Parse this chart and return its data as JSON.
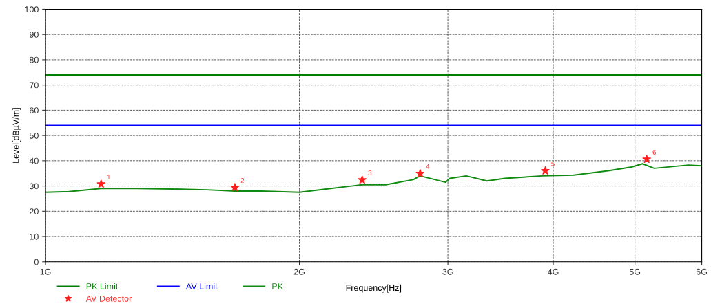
{
  "chart_data": {
    "type": "line",
    "xlabel": "Frequency[Hz]",
    "ylabel": "Level[dBµV/m]",
    "log": "x",
    "xlim": [
      1,
      6
    ],
    "ylim": [
      0,
      100
    ],
    "xticks": [
      {
        "value": 1,
        "label": "1G"
      },
      {
        "value": 2,
        "label": "2G"
      },
      {
        "value": 3,
        "label": "3G"
      },
      {
        "value": 4,
        "label": "4G"
      },
      {
        "value": 5,
        "label": "5G"
      },
      {
        "value": 6,
        "label": "6G"
      }
    ],
    "yticks": [
      0,
      10,
      20,
      30,
      40,
      50,
      60,
      70,
      80,
      90,
      100
    ],
    "grid": true,
    "legend": "bottom",
    "ref_lines": [
      {
        "axis": "y",
        "value": 74,
        "label": "PK Limit",
        "color": "#008000"
      },
      {
        "axis": "y",
        "value": 54,
        "label": "AV Limit",
        "color": "#0000ff"
      }
    ],
    "series": [
      {
        "name": "PK",
        "color": "#108a10",
        "x": [
          1.0,
          1.066,
          1.164,
          1.286,
          1.413,
          1.553,
          1.677,
          1.804,
          2.0,
          2.178,
          2.374,
          2.531,
          2.729,
          2.781,
          2.981,
          3.016,
          3.155,
          3.337,
          3.504,
          3.688,
          3.879,
          4.229,
          4.646,
          4.953,
          5.104,
          5.27,
          5.789,
          6.0
        ],
        "values": [
          27.5,
          27.8,
          29,
          29,
          28.8,
          28.5,
          28,
          28,
          27.5,
          29,
          30.5,
          30.5,
          32.5,
          34,
          31.5,
          33,
          34,
          32,
          33,
          33.5,
          34,
          34.3,
          36,
          37.5,
          38.8,
          37,
          38.3,
          38
        ]
      },
      {
        "name": "AV Detector",
        "type": "scatter",
        "marker": "star",
        "color": "#ff2020",
        "x": [
          1.164,
          1.677,
          2.374,
          2.781,
          3.914,
          5.163
        ],
        "values": [
          30.8,
          29.4,
          32.4,
          34.9,
          36.0,
          40.6
        ]
      }
    ],
    "annotations": [
      {
        "text": "1",
        "x": 1.164,
        "y": 30.8
      },
      {
        "text": "2",
        "x": 1.677,
        "y": 29.4
      },
      {
        "text": "3",
        "x": 2.374,
        "y": 32.4
      },
      {
        "text": "4",
        "x": 2.781,
        "y": 34.9
      },
      {
        "text": "5",
        "x": 3.914,
        "y": 36.0
      },
      {
        "text": "6",
        "x": 5.163,
        "y": 40.6
      }
    ]
  }
}
